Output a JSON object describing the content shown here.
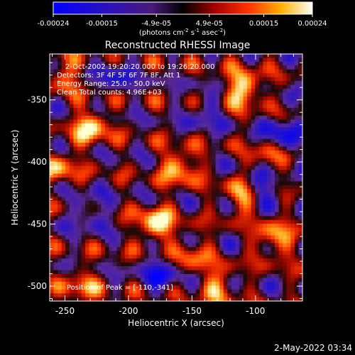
{
  "colorbar": {
    "tick_labels": [
      "-0.00024",
      "-0.00015",
      "-4.9e-05",
      "4.9e-05",
      "0.00015",
      "0.00024"
    ],
    "tick_values": [
      -0.00024,
      -0.00015,
      -4.9e-05,
      4.9e-05,
      0.00015,
      0.00024
    ],
    "range": [
      -0.00024,
      0.00024
    ],
    "unit_prefix": "(photons cm",
    "unit_sup1": "-2",
    "unit_mid": " s",
    "unit_sup2": "-1",
    "unit_mid2": " asec",
    "unit_sup3": "-2",
    "unit_suffix": ")"
  },
  "chart_data": {
    "type": "heatmap",
    "title": "Reconstructed RHESSI Image",
    "xlabel": "Heliocentric X (arcsec)",
    "ylabel": "Heliocentric Y (arcsec)",
    "xlim": [
      -262,
      -63
    ],
    "ylim": [
      -512,
      -313
    ],
    "x_ticks": [
      -250,
      -200,
      -150,
      -100
    ],
    "y_ticks": [
      -350,
      -400,
      -450,
      -500
    ],
    "colormap": [
      "#0000ff",
      "#3a1aa8",
      "#5a2a8e",
      "#2a0a0a",
      "#b01000",
      "#ff3a00",
      "#ffaa20",
      "#ffffd0"
    ],
    "peak_position": [
      -110,
      -341
    ],
    "bright_features": [
      {
        "x": -230,
        "y": -372,
        "value": 0.00022
      },
      {
        "x": -178,
        "y": -450,
        "value": 0.00024
      },
      {
        "x": -160,
        "y": -404,
        "value": 0.0002
      },
      {
        "x": -110,
        "y": -341,
        "value": 0.00024
      },
      {
        "x": -110,
        "y": -427,
        "value": 0.00019
      },
      {
        "x": -90,
        "y": -398,
        "value": 0.00017
      },
      {
        "x": -85,
        "y": -462,
        "value": 0.00018
      },
      {
        "x": -255,
        "y": -405,
        "value": 0.00016
      },
      {
        "x": -130,
        "y": -500,
        "value": 0.00016
      },
      {
        "x": -237,
        "y": -500,
        "value": 0.00014
      },
      {
        "x": -250,
        "y": -330,
        "value": 0.00014
      },
      {
        "x": -150,
        "y": -475,
        "value": 0.00013
      }
    ],
    "dark_features": [
      {
        "x": -210,
        "y": -330,
        "value": -0.00012
      },
      {
        "x": -80,
        "y": -380,
        "value": -0.00018
      },
      {
        "x": -95,
        "y": -418,
        "value": -0.0002
      },
      {
        "x": -175,
        "y": -490,
        "value": -0.00016
      },
      {
        "x": -140,
        "y": -360,
        "value": -0.0001
      },
      {
        "x": -230,
        "y": -440,
        "value": -0.00012
      }
    ]
  },
  "annotations": {
    "time_range": "2-Oct-2002 19:20:20.000 to 19:26:20.000",
    "detectors": "Detectors: 3F 4F 5F 6F 7F 8F, Att 1",
    "energy": "Energy Range: 25.0 - 50.0 keV",
    "clean": "Clean    Total counts: 4.96E+03",
    "peak": "Position of Peak = [-110,-341]"
  },
  "footer": {
    "date": "2-May-2022 03:34"
  }
}
